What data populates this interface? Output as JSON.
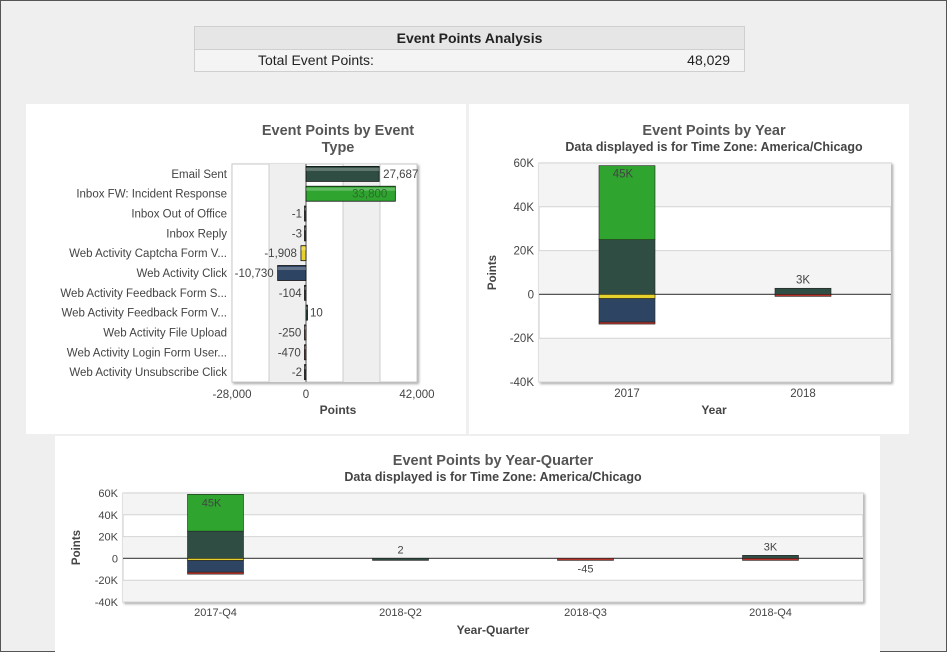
{
  "summary": {
    "title": "Event Points Analysis",
    "label": "Total Event Points:",
    "value": "48,029"
  },
  "chart_data": [
    {
      "type": "bar",
      "orientation": "horizontal",
      "title_lines": [
        "Event Points by Event",
        "Type"
      ],
      "subtitle": "",
      "xlabel": "Points",
      "ylabel": "",
      "xlim": [
        -28000,
        42000
      ],
      "x_ticks": [
        -28000,
        0,
        42000
      ],
      "x_tick_labels": [
        "-28,000",
        "0",
        "42,000"
      ],
      "grid": true,
      "categories": [
        "Email Sent",
        "Inbox FW: Incident Response",
        "Inbox Out of Office",
        "Inbox Reply",
        "Web Activity Captcha Form V...",
        "Web Activity Click",
        "Web Activity Feedback Form S...",
        "Web Activity Feedback Form V...",
        "Web Activity File Upload",
        "Web Activity Login Form User...",
        "Web Activity Unsubscribe Click"
      ],
      "values": [
        27687,
        33800,
        -1,
        -3,
        -1908,
        -10730,
        -104,
        10,
        -250,
        -470,
        -2
      ],
      "value_labels": [
        "27,687",
        "33,800",
        "-1",
        "-3",
        "-1,908",
        "-10,730",
        "-104",
        "10",
        "-250",
        "-470",
        "-2"
      ],
      "colors": [
        "#2f4d42",
        "#2fa52f",
        "#2f4d42",
        "#2f4d42",
        "#e6d22c",
        "#2e4463",
        "#2f4d42",
        "#2f4d42",
        "#c85a3a",
        "#b8332a",
        "#2f4d42"
      ]
    },
    {
      "type": "bar",
      "stacked": true,
      "title": "Event Points by Year",
      "subtitle": "Data displayed is for Time Zone: America/Chicago",
      "xlabel": "Year",
      "ylabel": "Points",
      "ylim": [
        -40000,
        60000
      ],
      "y_ticks": [
        -40000,
        -20000,
        0,
        20000,
        40000,
        60000
      ],
      "y_tick_labels": [
        "-40K",
        "-20K",
        "0",
        "20K",
        "40K",
        "60K"
      ],
      "grid": true,
      "categories": [
        "2017",
        "2018"
      ],
      "series": [
        {
          "name": "",
          "color": "#2f4d42",
          "values": [
            25000,
            2800
          ]
        },
        {
          "name": "",
          "color": "#2fa52f",
          "values": [
            33800,
            0
          ]
        },
        {
          "name": "",
          "color": "#e6d22c",
          "values": [
            -1908,
            0
          ]
        },
        {
          "name": "",
          "color": "#2e4463",
          "values": [
            -10730,
            0
          ]
        },
        {
          "name": "",
          "color": "#b8332a",
          "values": [
            -824,
            -200
          ]
        }
      ],
      "total_labels": [
        "45K",
        "3K"
      ]
    },
    {
      "type": "bar",
      "stacked": true,
      "title": "Event Points by Year-Quarter",
      "subtitle": "Data displayed is for Time Zone: America/Chicago",
      "xlabel": "Year-Quarter",
      "ylabel": "Points",
      "ylim": [
        -40000,
        60000
      ],
      "y_ticks": [
        -40000,
        -20000,
        0,
        20000,
        40000,
        60000
      ],
      "y_tick_labels": [
        "-40K",
        "-20K",
        "0",
        "20K",
        "40K",
        "60K"
      ],
      "grid": true,
      "categories": [
        "2017-Q4",
        "2018-Q2",
        "2018-Q3",
        "2018-Q4"
      ],
      "series": [
        {
          "name": "",
          "color": "#2f4d42",
          "values": [
            25000,
            2,
            0,
            2800
          ]
        },
        {
          "name": "",
          "color": "#2fa52f",
          "values": [
            33800,
            0,
            0,
            0
          ]
        },
        {
          "name": "",
          "color": "#e6d22c",
          "values": [
            -1908,
            0,
            0,
            0
          ]
        },
        {
          "name": "",
          "color": "#2e4463",
          "values": [
            -10730,
            0,
            0,
            0
          ]
        },
        {
          "name": "",
          "color": "#b8332a",
          "values": [
            -824,
            0,
            -45,
            -200
          ]
        }
      ],
      "total_labels": [
        "45K",
        "2",
        "-45",
        "3K"
      ]
    }
  ]
}
